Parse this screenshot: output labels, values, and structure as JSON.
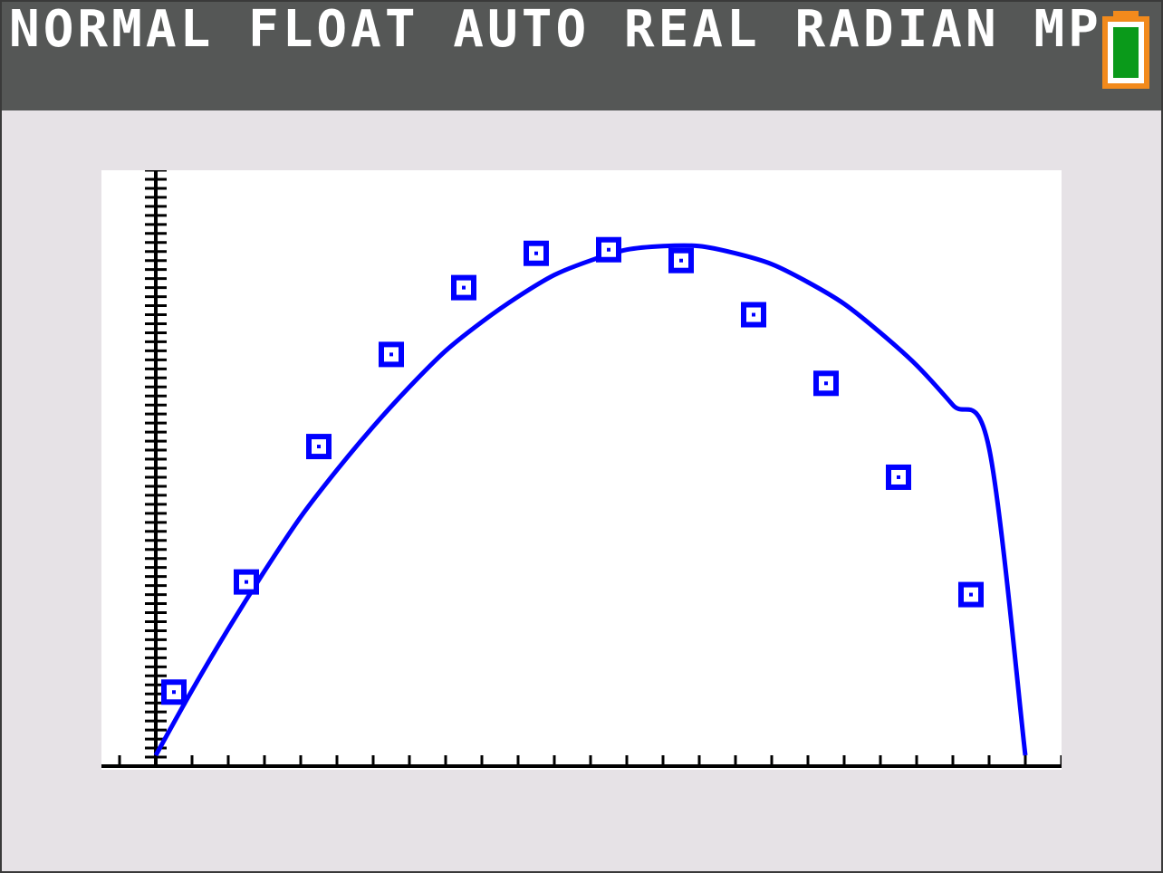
{
  "status_bar": {
    "mode_text": "NORMAL FLOAT AUTO REAL RADIAN MP",
    "battery_icon": "battery-full-icon",
    "colors": {
      "background": "#555756",
      "text": "#ffffff",
      "battery_outline": "#f28a1c",
      "battery_fill": "#0a9a1a"
    }
  },
  "graph": {
    "icon": "parabola-regression-graph",
    "colors": {
      "background": "#ffffff",
      "curve": "#0000ff",
      "axes": "#000000",
      "screen": "#e6e2e6"
    }
  },
  "chart_data": {
    "type": "scatter",
    "title": "",
    "xlabel": "",
    "ylabel": "",
    "xlim": [
      -0.75,
      12.5
    ],
    "ylim": [
      0,
      16.5
    ],
    "x_tick_step": 0.5,
    "y_tick_step": 0.25,
    "grid": false,
    "series": [
      {
        "kind": "points",
        "marker": "square",
        "x": [
          0.25,
          1.25,
          2.25,
          3.25,
          4.25,
          5.25,
          6.25,
          7.25,
          8.25,
          9.25,
          10.25,
          11.25
        ],
        "y": [
          2.05,
          5.1,
          8.85,
          11.4,
          13.25,
          14.2,
          14.3,
          14.0,
          12.5,
          10.6,
          8.0,
          4.75
        ]
      },
      {
        "kind": "curve",
        "equation": "quadratic",
        "x": [
          0,
          0.5,
          1,
          1.5,
          2,
          2.5,
          3,
          3.5,
          4,
          4.5,
          5,
          5.5,
          6,
          6.5,
          7,
          7.5,
          8,
          8.5,
          9,
          9.5,
          10,
          10.5,
          11,
          11.5,
          12
        ],
        "y": [
          0.3,
          2.1,
          3.8,
          5.4,
          6.9,
          8.2,
          9.4,
          10.5,
          11.5,
          12.3,
          13.0,
          13.6,
          14.0,
          14.3,
          14.4,
          14.4,
          14.2,
          13.9,
          13.4,
          12.8,
          12.0,
          11.1,
          10.0,
          8.8,
          0.3
        ]
      }
    ]
  }
}
